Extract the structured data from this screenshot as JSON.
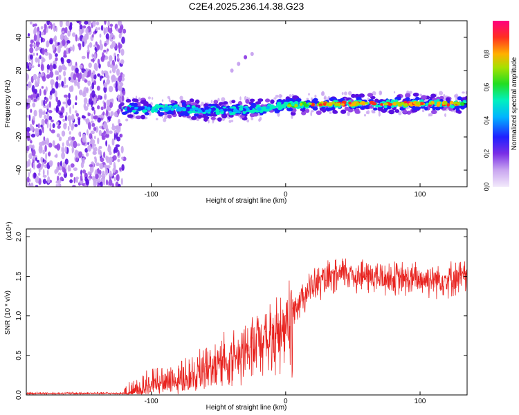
{
  "title": "C2E4.2025.236.14.38.G23",
  "colors": {
    "snr_line": "#e8231f",
    "spectrogram_background": "#ffffff",
    "colormap": [
      "#f2e9fb",
      "#c9a6f0",
      "#9448e6",
      "#5a10e0",
      "#2020ff",
      "#00b4ff",
      "#00f0c0",
      "#22dd22",
      "#a8e000",
      "#ffb000",
      "#ff3020",
      "#ff0080"
    ]
  },
  "chart_data": [
    {
      "type": "heatmap",
      "name": "spectrogram",
      "xlabel": "Height of straight line (km)",
      "ylabel": "Frequency (Hz)",
      "xlim": [
        -193,
        135
      ],
      "ylim": [
        -50,
        50
      ],
      "xticks": [
        -100,
        0,
        100
      ],
      "yticks": [
        -40,
        -20,
        0,
        20,
        40
      ],
      "colorbar": {
        "label": "Normalized spectral amplitude",
        "range": [
          0,
          1
        ],
        "ticks": [
          0.0,
          0.2,
          0.4,
          0.6,
          0.8
        ]
      },
      "noise_region_x": [
        -193,
        -120
      ],
      "signal_track": {
        "x": [
          -120,
          -100,
          -80,
          -60,
          -40,
          -20,
          0,
          20,
          40,
          60,
          80,
          100,
          120,
          135
        ],
        "center_freq": [
          -3,
          -3,
          -3,
          -4,
          -4,
          -3,
          -1,
          0,
          0,
          0,
          0,
          0,
          0,
          0
        ],
        "peak_amplitude": [
          0.4,
          0.45,
          0.5,
          0.45,
          0.45,
          0.55,
          0.7,
          0.85,
          0.9,
          0.9,
          0.9,
          0.95,
          0.9,
          0.85
        ]
      },
      "secondary_track": {
        "x": [
          -40,
          -35,
          -30,
          -25
        ],
        "freq": [
          20,
          24,
          28,
          30
        ]
      }
    },
    {
      "type": "line",
      "name": "snr",
      "xlabel": "Height of straight line (km)",
      "ylabel": "SNR (10 * v/v)",
      "y_multiplier": "(x10⁴)",
      "xlim": [
        -193,
        135
      ],
      "ylim": [
        0,
        2.1
      ],
      "xticks": [
        -100,
        0,
        100
      ],
      "yticks": [
        0.0,
        0.5,
        1.0,
        1.5,
        2.0
      ],
      "series": [
        {
          "name": "SNR",
          "x": [
            -193,
            -150,
            -125,
            -120,
            -110,
            -100,
            -90,
            -80,
            -70,
            -60,
            -50,
            -40,
            -30,
            -25,
            -20,
            -15,
            -10,
            -5,
            0,
            5,
            8,
            10,
            15,
            20,
            30,
            40,
            45,
            50,
            60,
            70,
            80,
            90,
            100,
            110,
            120,
            130,
            135
          ],
          "y": [
            0.02,
            0.02,
            0.02,
            0.02,
            0.08,
            0.15,
            0.18,
            0.22,
            0.3,
            0.36,
            0.45,
            0.5,
            0.62,
            0.72,
            0.78,
            0.8,
            0.85,
            0.9,
            1.0,
            1.1,
            1.15,
            1.2,
            1.3,
            1.38,
            1.45,
            1.5,
            1.55,
            1.52,
            1.5,
            1.48,
            1.47,
            1.46,
            1.46,
            1.47,
            1.47,
            1.48,
            1.5
          ]
        }
      ]
    }
  ]
}
